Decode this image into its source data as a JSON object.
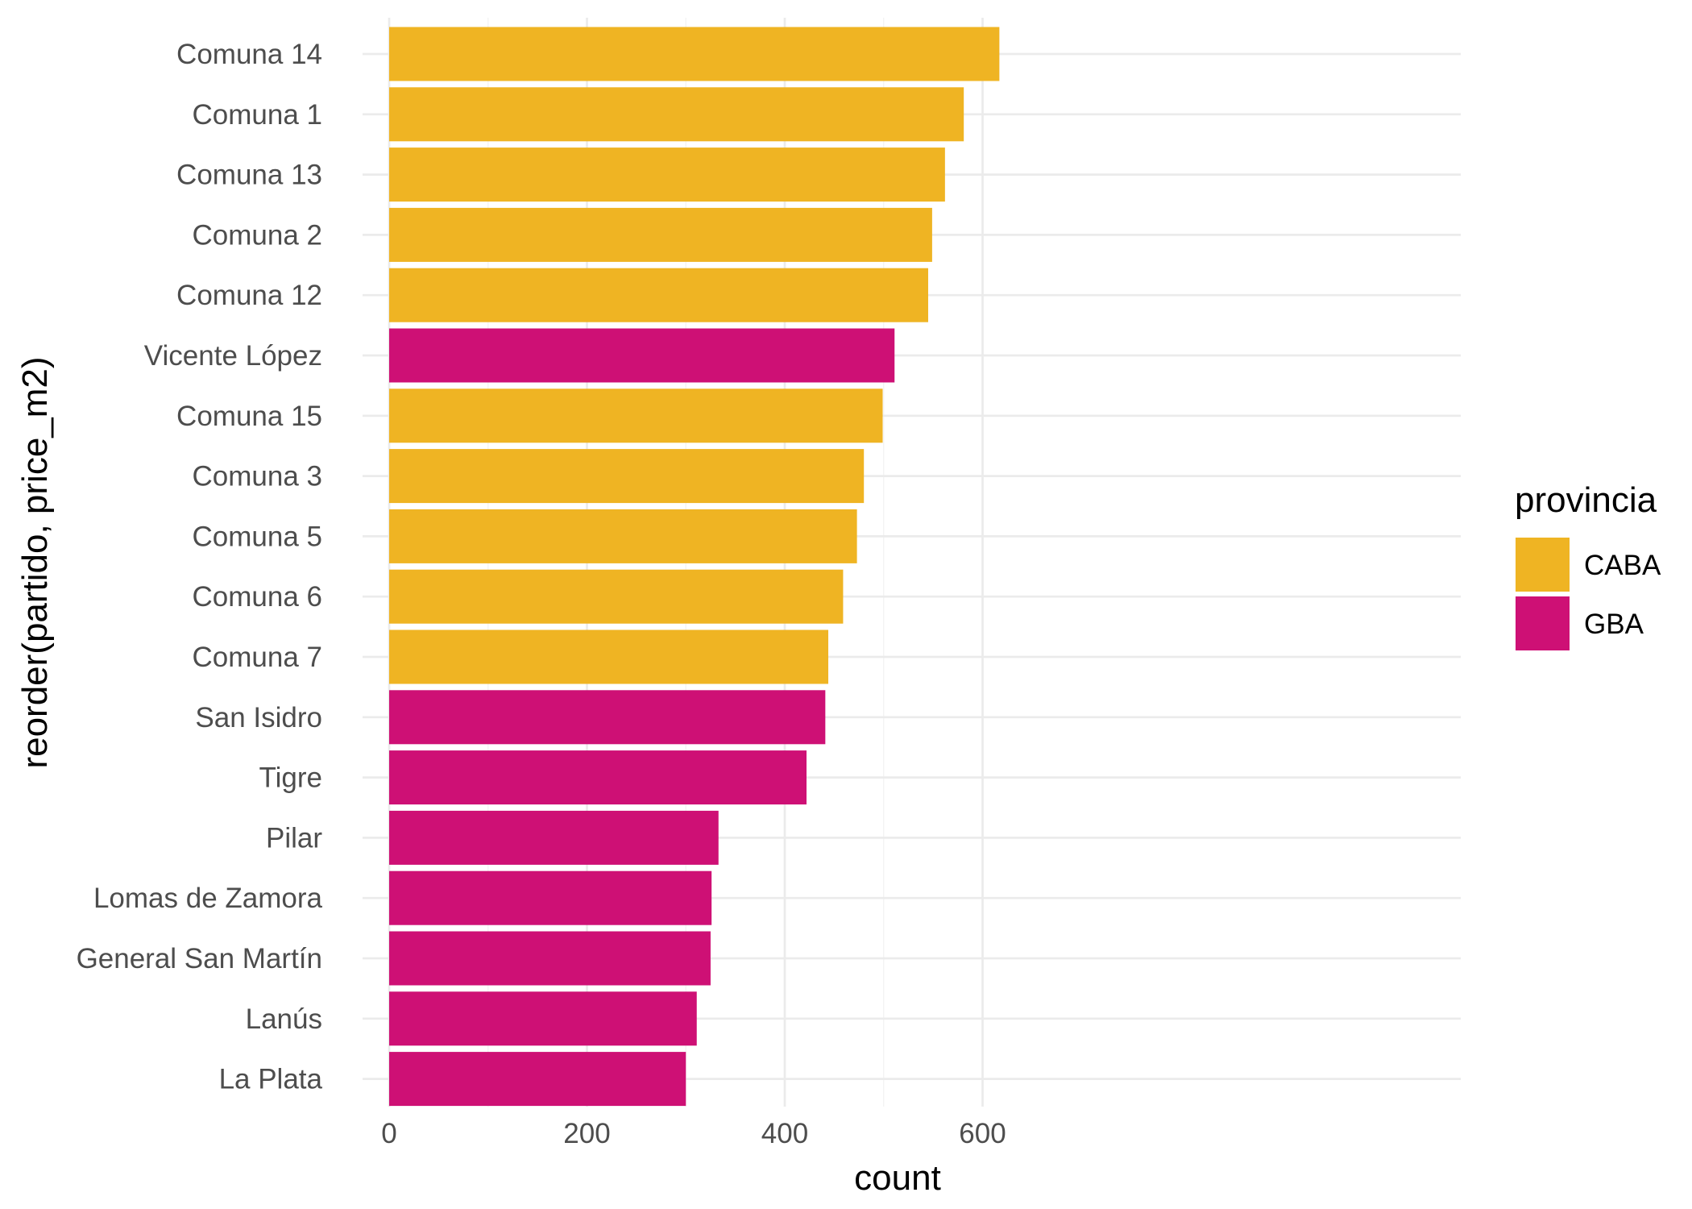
{
  "chart_data": {
    "type": "bar",
    "orientation": "horizontal",
    "xlabel": "count",
    "ylabel": "reorder(partido, price_m2)",
    "xlim": [
      0,
      650
    ],
    "xticks": [
      0,
      200,
      400,
      600
    ],
    "grid": true,
    "legend": {
      "title": "provincia",
      "position": "right",
      "entries": [
        {
          "name": "CABA",
          "color": "#EFB423"
        },
        {
          "name": "GBA",
          "color": "#CE1075"
        }
      ]
    },
    "categories": [
      "Comuna 14",
      "Comuna 1",
      "Comuna 13",
      "Comuna 2",
      "Comuna 12",
      "Vicente López",
      "Comuna 15",
      "Comuna 3",
      "Comuna 5",
      "Comuna 6",
      "Comuna 7",
      "San Isidro",
      "Tigre",
      "Pilar",
      "Lomas de Zamora",
      "General San Martín",
      "Lanús",
      "La Plata"
    ],
    "values": [
      617,
      581,
      562,
      549,
      545,
      511,
      499,
      480,
      473,
      459,
      444,
      441,
      422,
      333,
      326,
      325,
      311,
      300
    ],
    "group": [
      "CABA",
      "CABA",
      "CABA",
      "CABA",
      "CABA",
      "GBA",
      "CABA",
      "CABA",
      "CABA",
      "CABA",
      "CABA",
      "GBA",
      "GBA",
      "GBA",
      "GBA",
      "GBA",
      "GBA",
      "GBA"
    ]
  }
}
